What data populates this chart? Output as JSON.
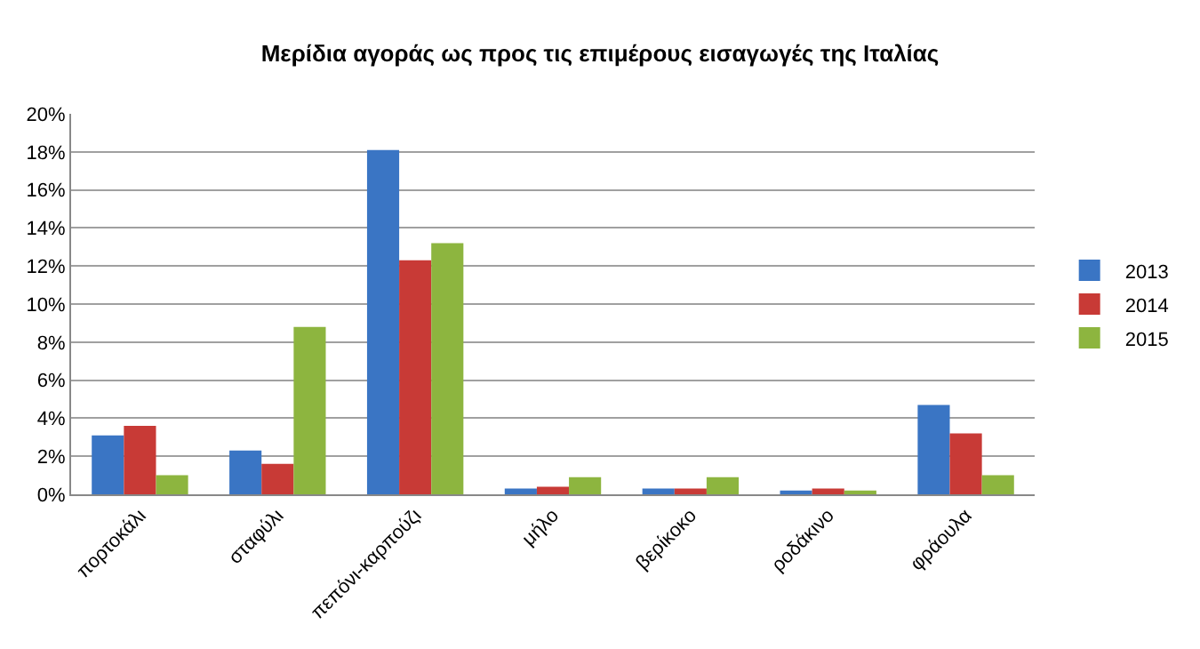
{
  "chart_data": {
    "type": "bar",
    "title": "Μερίδια αγοράς ως προς τις επιμέρους εισαγωγές της Ιταλίας",
    "categories": [
      "πορτοκάλι",
      "σταφύλι",
      "πεπόνι-καρπούζι",
      "μήλο",
      "βερίκοκο",
      "ροδάκινο",
      "φράουλα"
    ],
    "series": [
      {
        "name": "2013",
        "color": "#3a75c4",
        "values": [
          3.1,
          2.3,
          18.1,
          0.3,
          0.3,
          0.2,
          4.7
        ]
      },
      {
        "name": "2014",
        "color": "#c83a36",
        "values": [
          3.6,
          1.6,
          12.3,
          0.4,
          0.3,
          0.3,
          3.2
        ]
      },
      {
        "name": "2015",
        "color": "#8db53f",
        "values": [
          1.0,
          8.8,
          13.2,
          0.9,
          0.9,
          0.2,
          1.0
        ]
      }
    ],
    "ylim": [
      0,
      20
    ],
    "yticks": [
      {
        "value": 0,
        "label": "0%"
      },
      {
        "value": 2,
        "label": "2%"
      },
      {
        "value": 4,
        "label": "4%"
      },
      {
        "value": 6,
        "label": "6%"
      },
      {
        "value": 8,
        "label": "8%"
      },
      {
        "value": 10,
        "label": "10%"
      },
      {
        "value": 12,
        "label": "12%"
      },
      {
        "value": 14,
        "label": "14%"
      },
      {
        "value": 16,
        "label": "16%"
      },
      {
        "value": 18,
        "label": "18%"
      },
      {
        "value": 20,
        "label": "20%"
      }
    ],
    "grid": "y",
    "legend": "right"
  }
}
